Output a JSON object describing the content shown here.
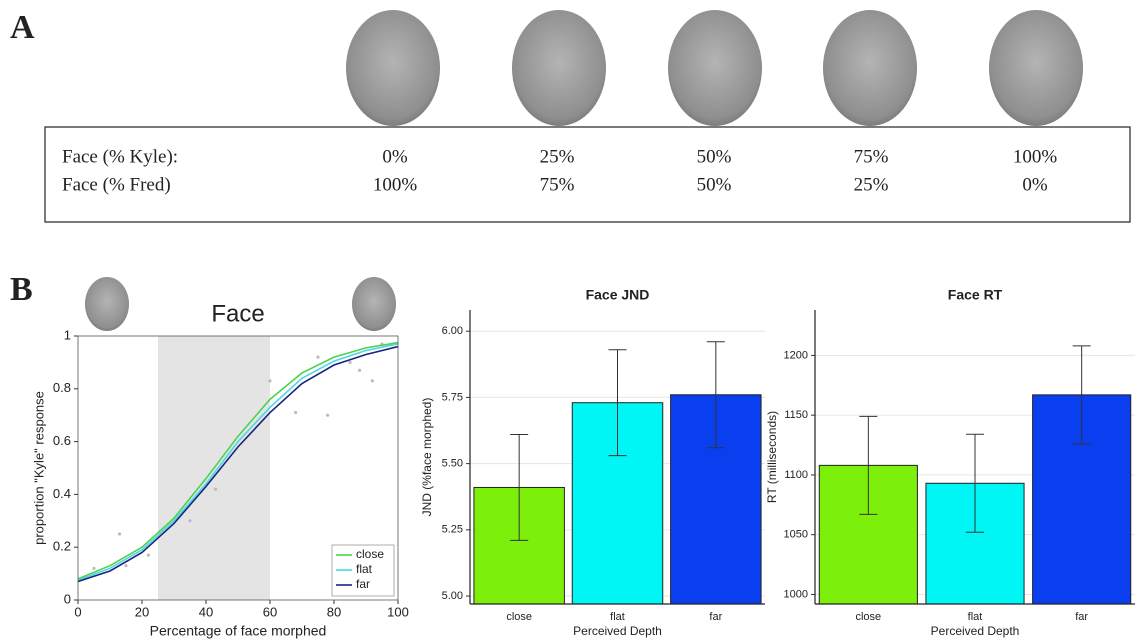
{
  "panels": [
    "A",
    "B"
  ],
  "table": {
    "rows": [
      [
        "Face (% Kyle):",
        "0%",
        "25%",
        "50%",
        "75%",
        "100%"
      ],
      [
        "Face (% Fred)",
        "100%",
        "75%",
        "50%",
        "25%",
        "0%"
      ]
    ]
  },
  "chart_data": [
    {
      "type": "line",
      "title": "Face",
      "x_label": "Percentage of face morphed",
      "y_label": "proportion \"Kyle\" response",
      "x": [
        0,
        10,
        20,
        30,
        40,
        50,
        60,
        70,
        80,
        90,
        100
      ],
      "series": [
        {
          "name": "close",
          "color": "#4cd24c",
          "values": [
            0.08,
            0.13,
            0.2,
            0.31,
            0.46,
            0.62,
            0.76,
            0.86,
            0.92,
            0.955,
            0.975
          ]
        },
        {
          "name": "flat",
          "color": "#4ad8e8",
          "values": [
            0.075,
            0.12,
            0.19,
            0.3,
            0.44,
            0.6,
            0.73,
            0.84,
            0.905,
            0.945,
            0.97
          ]
        },
        {
          "name": "far",
          "color": "#1a237e",
          "values": [
            0.07,
            0.11,
            0.18,
            0.29,
            0.43,
            0.58,
            0.71,
            0.82,
            0.89,
            0.93,
            0.96
          ]
        }
      ],
      "observed": {
        "color": "#bbbbbb",
        "x": [
          5,
          13,
          15,
          22,
          35,
          43,
          60,
          68,
          75,
          78,
          85,
          88,
          92,
          95
        ],
        "values": [
          0.12,
          0.25,
          0.13,
          0.17,
          0.3,
          0.42,
          0.83,
          0.71,
          0.92,
          0.7,
          0.9,
          0.87,
          0.83,
          0.97
        ]
      },
      "highlight": [
        25,
        60
      ],
      "highlight_color": "#e4e4e4",
      "xlim": [
        0,
        100
      ],
      "xticks": [
        0,
        20,
        40,
        60,
        80,
        100
      ],
      "ylim": [
        0,
        1
      ],
      "yticks": [
        0,
        0.2,
        0.4,
        0.6,
        0.8,
        1
      ],
      "grid": false,
      "legend": "lower right"
    },
    {
      "type": "bar",
      "title": "Face JND",
      "x_label": "Perceived Depth",
      "y_label": "JND (%face morphed)",
      "categories": [
        "close",
        "flat",
        "far"
      ],
      "values": [
        5.41,
        5.73,
        5.76
      ],
      "errors": [
        0.2,
        0.2,
        0.2
      ],
      "colors": [
        "#7cf00a",
        "#00f5f5",
        "#0a3ff0"
      ],
      "ylim": [
        4.97,
        6.08
      ],
      "yticks": [
        {
          "value": 5,
          "label": "5.00"
        },
        {
          "value": 5.25,
          "label": "5.25"
        },
        {
          "value": 5.5,
          "label": "5.50"
        },
        {
          "value": 5.75,
          "label": "5.75"
        },
        {
          "value": 6,
          "label": "6.00"
        }
      ],
      "grid": true
    },
    {
      "type": "bar",
      "title": "Face RT",
      "x_label": "Perceived Depth",
      "y_label": "RT (milliseconds)",
      "categories": [
        "close",
        "flat",
        "far"
      ],
      "values": [
        1108,
        1093,
        1167
      ],
      "errors": [
        41,
        41,
        41
      ],
      "colors": [
        "#7cf00a",
        "#00f5f5",
        "#0a3ff0"
      ],
      "ylim": [
        992,
        1238
      ],
      "yticks": [
        1000,
        1050,
        1100,
        1150,
        1200
      ],
      "grid": true
    }
  ]
}
